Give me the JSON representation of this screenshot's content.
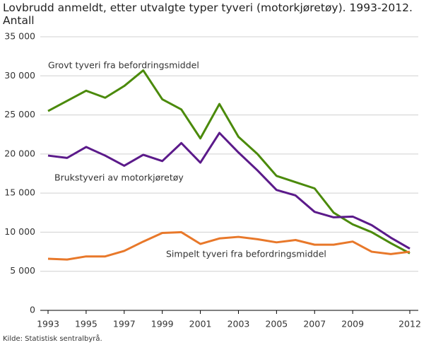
{
  "chart_data": {
    "type": "line",
    "title": "Lovbrudd anmeldt, etter utvalgte typer tyveri (motorkjøretøy). 1993-2012. Antall",
    "source": "Kilde: Statistisk sentralbyrå.",
    "x": [
      1993,
      1994,
      1995,
      1996,
      1997,
      1998,
      1999,
      2000,
      2001,
      2002,
      2003,
      2004,
      2005,
      2006,
      2007,
      2008,
      2009,
      2010,
      2011,
      2012
    ],
    "xlim": [
      1993,
      2012
    ],
    "xticks": [
      1993,
      1995,
      1997,
      1999,
      2001,
      2003,
      2005,
      2007,
      2009,
      2012
    ],
    "ylim": [
      0,
      35000
    ],
    "yticks": [
      0,
      {
        "value": 5000,
        "label": "5 000"
      },
      {
        "value": 10000,
        "label": "10 000"
      },
      {
        "value": 15000,
        "label": "15 000"
      },
      {
        "value": 20000,
        "label": "20 000"
      },
      {
        "value": 25000,
        "label": "25 000"
      },
      {
        "value": 30000,
        "label": "30 000"
      },
      {
        "value": 35000,
        "label": "35 000"
      }
    ],
    "grid": true,
    "series": [
      {
        "name": "Grovt tyveri fra befordringsmiddel",
        "color": "#4b8a0b",
        "values": [
          25500,
          26800,
          28100,
          27200,
          28700,
          30700,
          27000,
          25700,
          22000,
          26400,
          22200,
          20000,
          17200,
          16400,
          15600,
          12500,
          11000,
          10000,
          8600,
          7300
        ]
      },
      {
        "name": "Brukstyveri av motorkjøretøy",
        "color": "#5b1a8a",
        "values": [
          19800,
          19500,
          20900,
          19800,
          18500,
          19900,
          19100,
          21400,
          18900,
          22700,
          20200,
          17900,
          15400,
          14700,
          12600,
          11900,
          12000,
          10900,
          9300,
          7900
        ]
      },
      {
        "name": "Simpelt tyveri fra befordringsmiddel",
        "color": "#e8782a",
        "values": [
          6600,
          6500,
          6900,
          6900,
          7600,
          8800,
          9900,
          10000,
          8500,
          9200,
          9400,
          9100,
          8700,
          9000,
          8400,
          8400,
          8800,
          7500,
          7200,
          7500
        ]
      }
    ]
  }
}
